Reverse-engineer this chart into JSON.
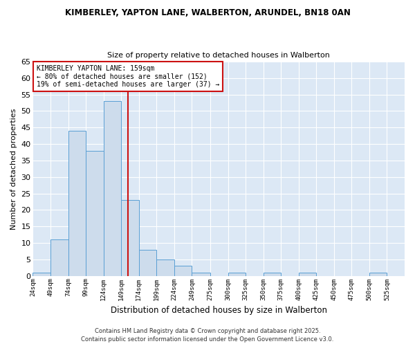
{
  "title1": "KIMBERLEY, YAPTON LANE, WALBERTON, ARUNDEL, BN18 0AN",
  "title2": "Size of property relative to detached houses in Walberton",
  "xlabel": "Distribution of detached houses by size in Walberton",
  "ylabel": "Number of detached properties",
  "bin_edges": [
    24,
    49,
    74,
    99,
    124,
    149,
    174,
    199,
    224,
    249,
    275,
    300,
    325,
    350,
    375,
    400,
    425,
    450,
    475,
    500,
    525,
    550
  ],
  "bin_labels": [
    "24sqm",
    "49sqm",
    "74sqm",
    "99sqm",
    "124sqm",
    "149sqm",
    "174sqm",
    "199sqm",
    "224sqm",
    "249sqm",
    "275sqm",
    "300sqm",
    "325sqm",
    "350sqm",
    "375sqm",
    "400sqm",
    "425sqm",
    "450sqm",
    "475sqm",
    "500sqm",
    "525sqm"
  ],
  "counts": [
    1,
    11,
    44,
    38,
    53,
    23,
    8,
    5,
    3,
    1,
    0,
    1,
    0,
    1,
    0,
    1,
    0,
    0,
    0,
    1,
    0
  ],
  "bar_color": "#cddcec",
  "bar_edge_color": "#5a9fd4",
  "vline_x": 159,
  "vline_color": "#cc1111",
  "ylim": [
    0,
    65
  ],
  "yticks": [
    0,
    5,
    10,
    15,
    20,
    25,
    30,
    35,
    40,
    45,
    50,
    55,
    60,
    65
  ],
  "annotation_title": "KIMBERLEY YAPTON LANE: 159sqm",
  "annotation_line1": "← 80% of detached houses are smaller (152)",
  "annotation_line2": "19% of semi-detached houses are larger (37) →",
  "annotation_box_color": "#ffffff",
  "annotation_box_edge": "#cc1111",
  "footer1": "Contains HM Land Registry data © Crown copyright and database right 2025.",
  "footer2": "Contains public sector information licensed under the Open Government Licence v3.0.",
  "bg_color": "#ffffff",
  "plot_bg_color": "#dce8f5",
  "grid_color": "#ffffff"
}
